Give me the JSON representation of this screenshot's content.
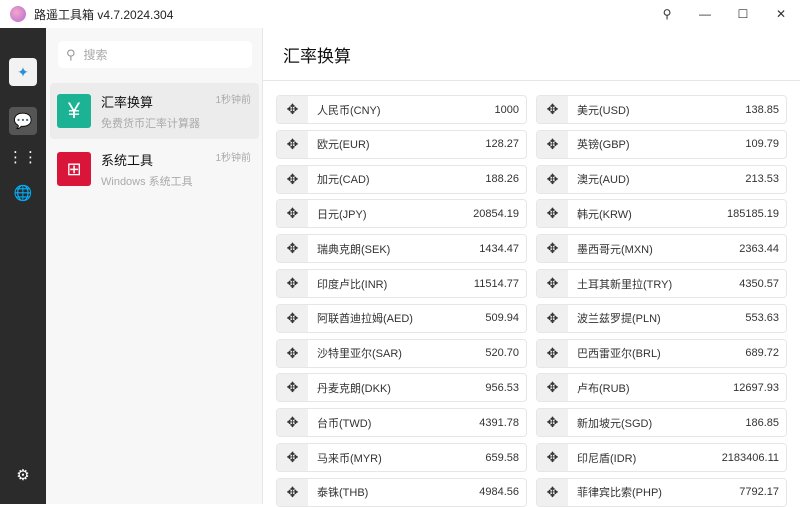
{
  "window": {
    "title": "路遥工具箱 v4.7.2024.304",
    "controls": [
      "pin",
      "minimize",
      "maximize",
      "close"
    ]
  },
  "rail": {
    "items": [
      {
        "icon": "app-logo-icon"
      },
      {
        "icon": "chat-icon"
      },
      {
        "icon": "grid-icon"
      },
      {
        "icon": "globe-icon"
      }
    ],
    "settings_icon": "gear-icon"
  },
  "panel": {
    "search_placeholder": "搜索",
    "tools": [
      {
        "name": "汇率换算",
        "desc": "免费货币汇率计算器",
        "time": "1秒钟前",
        "color": "#1bb394",
        "icon": "yen-icon"
      },
      {
        "name": "系统工具",
        "desc": "Windows 系统工具",
        "time": "1秒钟前",
        "color": "#d9163a",
        "icon": "windows-icon"
      }
    ]
  },
  "main": {
    "title": "汇率换算",
    "currencies": [
      {
        "name": "人民币(CNY)",
        "value": "1000"
      },
      {
        "name": "美元(USD)",
        "value": "138.85"
      },
      {
        "name": "欧元(EUR)",
        "value": "128.27"
      },
      {
        "name": "英镑(GBP)",
        "value": "109.79"
      },
      {
        "name": "加元(CAD)",
        "value": "188.26"
      },
      {
        "name": "澳元(AUD)",
        "value": "213.53"
      },
      {
        "name": "日元(JPY)",
        "value": "20854.19"
      },
      {
        "name": "韩元(KRW)",
        "value": "185185.19"
      },
      {
        "name": "瑞典克朗(SEK)",
        "value": "1434.47"
      },
      {
        "name": "墨西哥元(MXN)",
        "value": "2363.44"
      },
      {
        "name": "印度卢比(INR)",
        "value": "11514.77"
      },
      {
        "name": "土耳其新里拉(TRY)",
        "value": "4350.57"
      },
      {
        "name": "阿联酋迪拉姆(AED)",
        "value": "509.94"
      },
      {
        "name": "波兰兹罗提(PLN)",
        "value": "553.63"
      },
      {
        "name": "沙特里亚尔(SAR)",
        "value": "520.70"
      },
      {
        "name": "巴西雷亚尔(BRL)",
        "value": "689.72"
      },
      {
        "name": "丹麦克朗(DKK)",
        "value": "956.53"
      },
      {
        "name": "卢布(RUB)",
        "value": "12697.93"
      },
      {
        "name": "台币(TWD)",
        "value": "4391.78"
      },
      {
        "name": "新加坡元(SGD)",
        "value": "186.85"
      },
      {
        "name": "马来币(MYR)",
        "value": "659.58"
      },
      {
        "name": "印尼盾(IDR)",
        "value": "2183406.11"
      },
      {
        "name": "泰铢(THB)",
        "value": "4984.56"
      },
      {
        "name": "菲律宾比索(PHP)",
        "value": "7792.17"
      }
    ]
  }
}
